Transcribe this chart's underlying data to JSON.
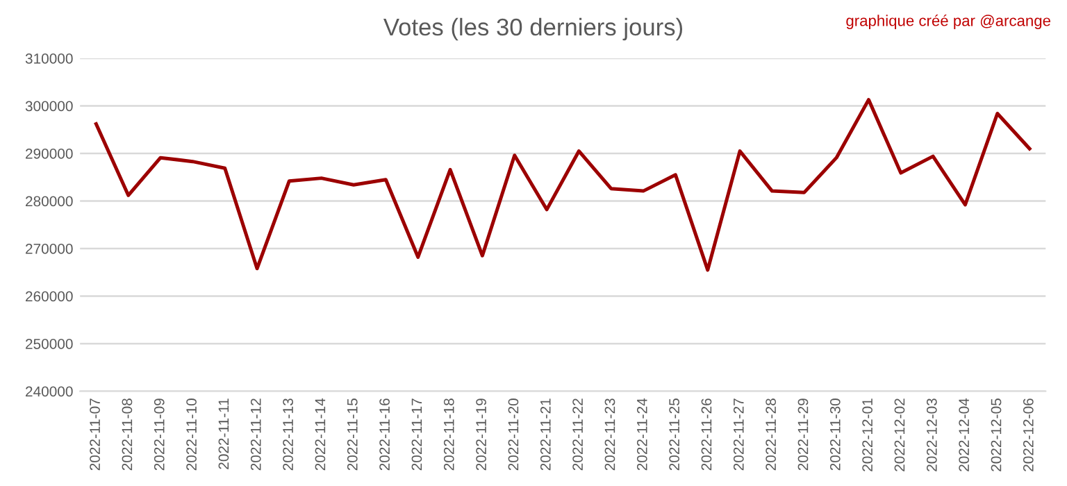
{
  "chart_data": {
    "type": "line",
    "title": "Votes (les 30 derniers jours)",
    "annotations": [
      "graphique créé par @arcange"
    ],
    "categories": [
      "2022-11-07",
      "2022-11-08",
      "2022-11-09",
      "2022-11-10",
      "2022-11-11",
      "2022-11-12",
      "2022-11-13",
      "2022-11-14",
      "2022-11-15",
      "2022-11-16",
      "2022-11-17",
      "2022-11-18",
      "2022-11-19",
      "2022-11-20",
      "2022-11-21",
      "2022-11-22",
      "2022-11-23",
      "2022-11-24",
      "2022-11-25",
      "2022-11-26",
      "2022-11-27",
      "2022-11-28",
      "2022-11-29",
      "2022-11-30",
      "2022-12-01",
      "2022-12-02",
      "2022-12-03",
      "2022-12-04",
      "2022-12-05",
      "2022-12-06"
    ],
    "series": [
      {
        "color": "#9c0000",
        "values": [
          296200,
          281200,
          289100,
          288300,
          286900,
          265800,
          284200,
          284800,
          283400,
          284500,
          268200,
          286600,
          268500,
          289600,
          278200,
          290500,
          282600,
          282100,
          285500,
          265500,
          290500,
          282100,
          281800,
          289100,
          301300,
          285900,
          289400,
          279200,
          298400,
          291000
        ]
      }
    ],
    "ylim": [
      240000,
      310000
    ],
    "yticks": [
      240000,
      250000,
      260000,
      270000,
      280000,
      290000,
      300000,
      310000
    ],
    "grid": "y",
    "marker": "none",
    "line_style": "solid"
  }
}
